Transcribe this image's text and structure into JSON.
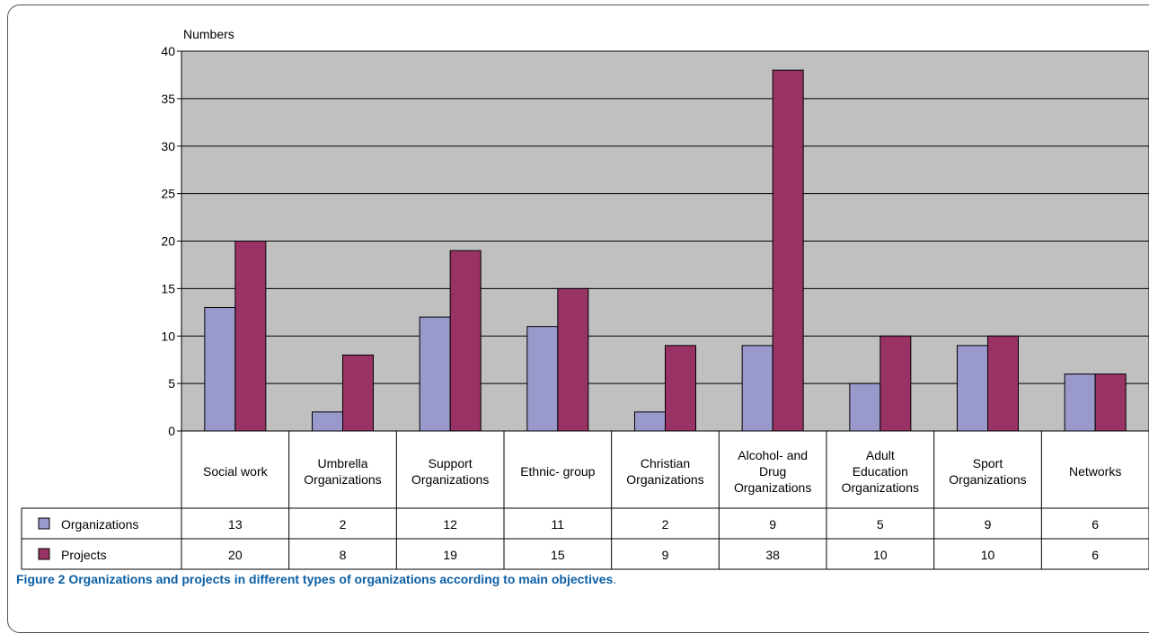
{
  "chart_data": {
    "type": "bar",
    "ylabel": "Numbers",
    "ylim": [
      0,
      40
    ],
    "yticks": [
      0,
      5,
      10,
      15,
      20,
      25,
      30,
      35,
      40
    ],
    "grid": true,
    "categories": [
      [
        "Social work"
      ],
      [
        "Umbrella",
        "Organizations"
      ],
      [
        "Support",
        "Organizations"
      ],
      [
        "Ethnic- group"
      ],
      [
        "Christian",
        "Organizations"
      ],
      [
        "Alcohol- and",
        "Drug",
        "Organizations"
      ],
      [
        "Adult",
        "Education",
        "Organizations"
      ],
      [
        "Sport",
        "Organizations"
      ],
      [
        "Networks"
      ]
    ],
    "series": [
      {
        "name": "Organizations",
        "color": "#9999cc",
        "values": [
          13,
          2,
          12,
          11,
          2,
          9,
          5,
          9,
          6
        ]
      },
      {
        "name": "Projects",
        "color": "#993366",
        "values": [
          20,
          8,
          19,
          15,
          9,
          38,
          10,
          10,
          6
        ]
      }
    ],
    "plot_background": "#c0c0c0",
    "data_table": true
  },
  "caption": {
    "lead": "Figure 2 Organizations and projects in different types of organizations according to main objectives",
    "tail": "."
  }
}
